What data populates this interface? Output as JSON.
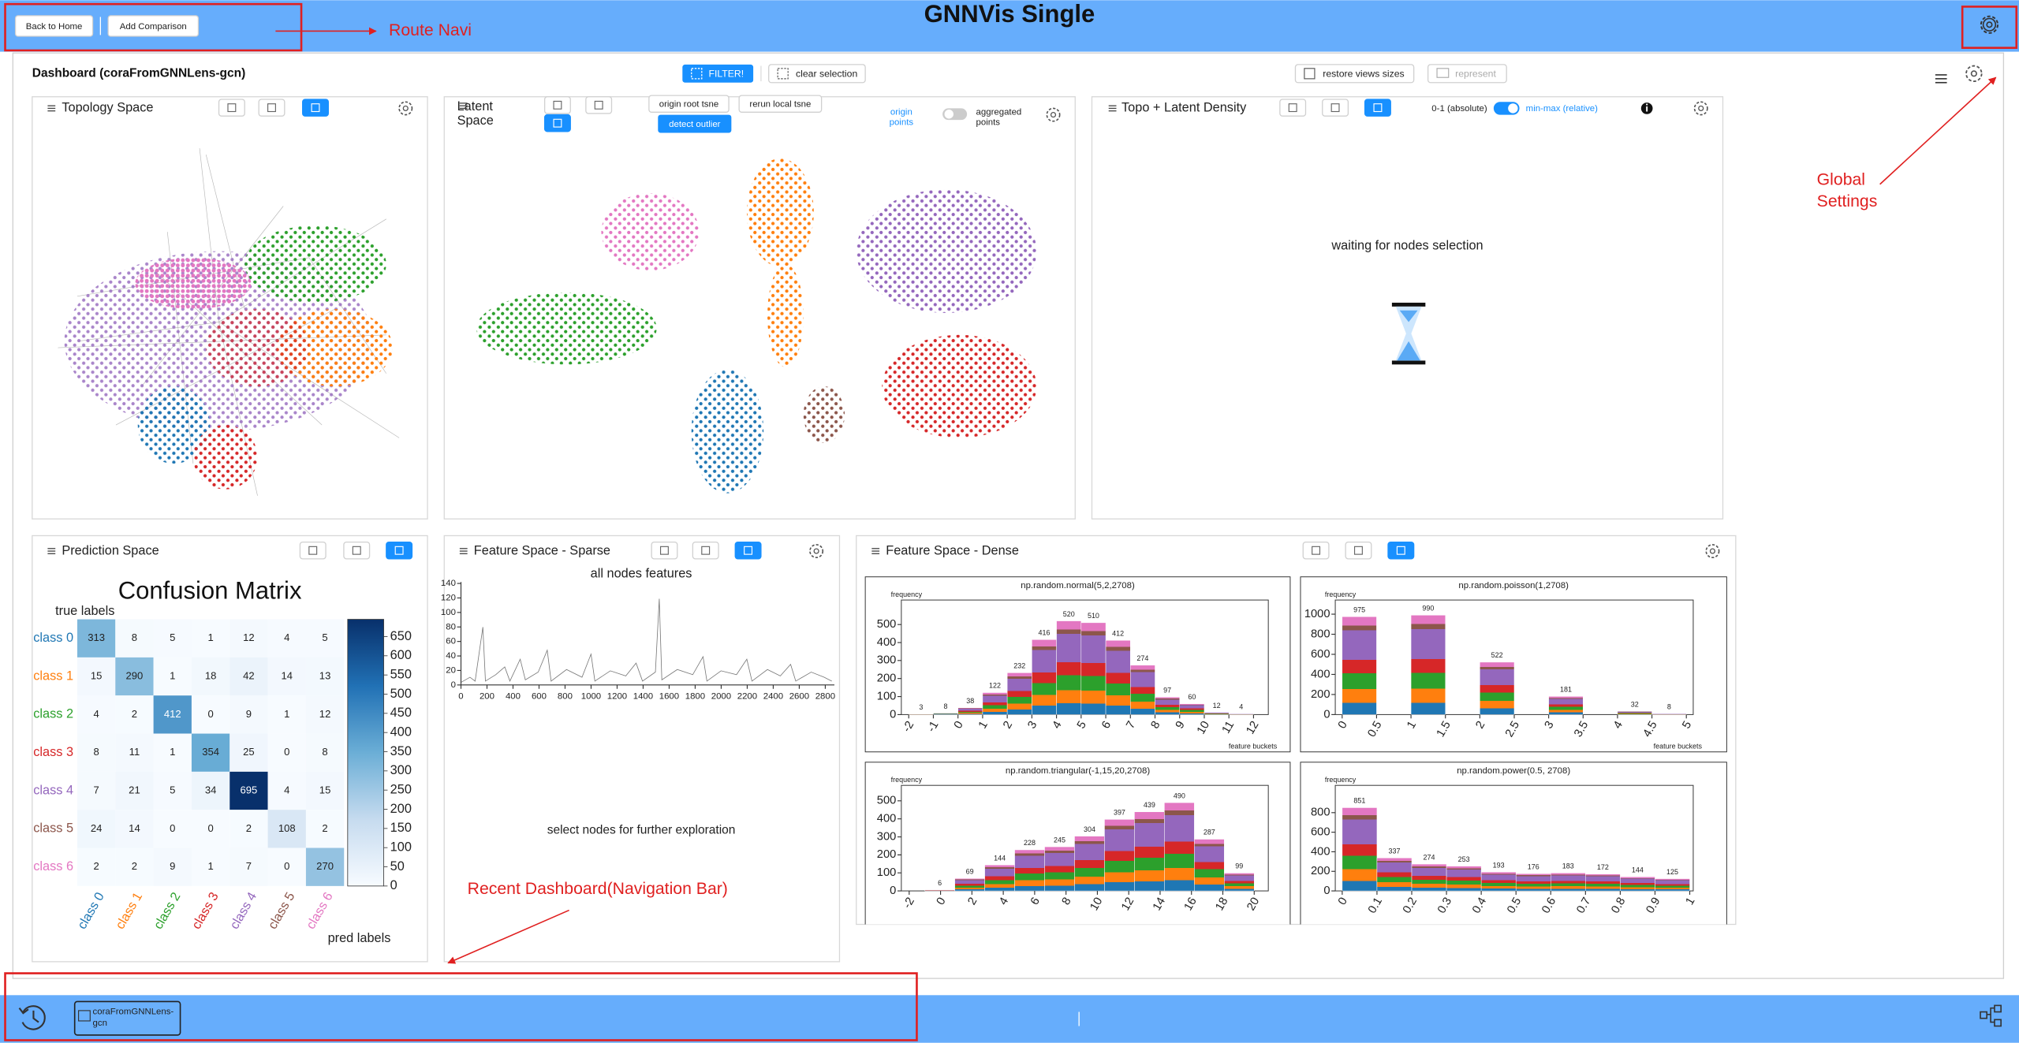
{
  "header": {
    "title": "GNNVis Single",
    "buttons": [
      "Back to Home",
      "Add Comparison"
    ]
  },
  "annotations": {
    "route_navi": "Route Navi",
    "global_settings": [
      "Global",
      "Settings"
    ],
    "nav_bar": "Recent Dashboard(Navigation Bar)"
  },
  "dashboard": {
    "title": "Dashboard (coraFromGNNLens-gcn)",
    "buttons": [
      "FILTER!",
      "clear selection",
      "restore views sizes",
      "represent"
    ]
  },
  "panels": {
    "topology": {
      "title": "Topology Space"
    },
    "latent": {
      "title": [
        "Latent",
        "Space"
      ],
      "buttons": [
        "origin root tsne",
        "rerun local tsne",
        "detect outlier"
      ],
      "toggle_left": [
        "origin",
        "points"
      ],
      "toggle_right": [
        "aggregated",
        "points"
      ]
    },
    "density": {
      "title": "Topo + Latent Density",
      "toggle_left": "0-1 (absolute)",
      "toggle_right": "min-max (relative)",
      "message": "waiting for nodes selection"
    },
    "prediction": {
      "title": "Prediction Space"
    },
    "sparse": {
      "title": "Feature Space - Sparse",
      "message": "select nodes for further exploration"
    },
    "dense": {
      "title": "Feature Space - Dense"
    }
  },
  "navbar": {
    "tiles": [
      [
        "coraFromGNNLens-",
        "gcn"
      ]
    ]
  },
  "chart_data": [
    {
      "type": "heatmap",
      "title": "Confusion Matrix",
      "y_label": "true labels",
      "x_label": "pred labels",
      "categories": [
        "class 0",
        "class 1",
        "class 2",
        "class 3",
        "class 4",
        "class 5",
        "class 6"
      ],
      "colors": [
        "#1f77b4",
        "#ff7f0e",
        "#2ca02c",
        "#d62728",
        "#9467bd",
        "#8c564b",
        "#e377c2"
      ],
      "values": [
        [
          313,
          8,
          5,
          1,
          12,
          4,
          5
        ],
        [
          15,
          290,
          1,
          18,
          42,
          14,
          13
        ],
        [
          4,
          2,
          412,
          0,
          9,
          1,
          12
        ],
        [
          8,
          11,
          1,
          354,
          25,
          0,
          8
        ],
        [
          7,
          21,
          5,
          34,
          695,
          4,
          15
        ],
        [
          24,
          14,
          0,
          0,
          2,
          108,
          2
        ],
        [
          2,
          2,
          9,
          1,
          7,
          0,
          270
        ]
      ],
      "colormap": "Blues",
      "clim": [
        0,
        695
      ],
      "cticks": [
        0,
        50,
        100,
        150,
        200,
        250,
        300,
        350,
        400,
        450,
        500,
        550,
        600,
        650
      ]
    },
    {
      "type": "line",
      "title": "all nodes features",
      "xlim": [
        0,
        2870
      ],
      "ylim": [
        0,
        142
      ],
      "xticks": [
        0,
        200,
        400,
        600,
        800,
        1000,
        1200,
        1400,
        1600,
        1800,
        2000,
        2200,
        2400,
        2600,
        2800
      ],
      "yticks": [
        0,
        20,
        40,
        60,
        80,
        100,
        120,
        140
      ]
    },
    {
      "type": "histogram",
      "title": "np.random.normal(5,2,2708)",
      "y_label": "frequency",
      "x_label": "feature buckets",
      "bins": [
        -2,
        -1,
        0,
        1,
        2,
        3,
        4,
        5,
        6,
        7,
        8,
        9,
        10,
        11,
        12
      ],
      "values": [
        3,
        8,
        38,
        122,
        232,
        416,
        520,
        510,
        412,
        274,
        97,
        60,
        12,
        4
      ],
      "xlim": [
        -2.3,
        12.6
      ],
      "ylim": [
        0,
        636
      ],
      "xticks": [
        -2,
        -1,
        0,
        1,
        2,
        3,
        4,
        5,
        6,
        7,
        8,
        9,
        10,
        11,
        12
      ],
      "yticks": [
        0,
        100,
        200,
        300,
        400,
        500
      ]
    },
    {
      "type": "histogram",
      "title": "np.random.poisson(1,2708)",
      "y_label": "frequency",
      "x_label": "feature buckets",
      "bins": [
        0,
        0.5,
        1,
        1.5,
        2,
        2.5,
        3,
        3.5,
        4,
        4.5,
        5
      ],
      "values": [
        975,
        0,
        990,
        0,
        522,
        0,
        181,
        0,
        32,
        8
      ],
      "value_labels": [
        "975",
        null,
        "990",
        null,
        "522",
        null,
        "181",
        null,
        "32",
        "8"
      ],
      "xlim": [
        -0.1,
        5.1
      ],
      "ylim": [
        0,
        1141
      ],
      "xticks": [
        0,
        0.5,
        1,
        1.5,
        2,
        2.5,
        3,
        3.5,
        4,
        4.5,
        5
      ],
      "yticks": [
        0,
        200,
        400,
        600,
        800,
        1000
      ]
    },
    {
      "type": "histogram",
      "title": "np.random.triangular(-1,15,20,2708)",
      "y_label": "frequency",
      "bins": [
        -1,
        0.909,
        2.818,
        4.727,
        6.636,
        8.545,
        10.455,
        12.364,
        14.273,
        16.182,
        18.091,
        20
      ],
      "values": [
        6,
        69,
        144,
        228,
        245,
        304,
        397,
        439,
        490,
        287,
        99
      ],
      "xlim": [
        -2.5,
        20.9
      ],
      "ylim": [
        0,
        586
      ],
      "xticks": [
        -2,
        0,
        2,
        4,
        6,
        8,
        10,
        12,
        14,
        16,
        18,
        20
      ],
      "yticks": [
        0,
        100,
        200,
        300,
        400,
        500
      ]
    },
    {
      "type": "histogram",
      "title": "np.random.power(0.5, 2708)",
      "y_label": "frequency",
      "bins": [
        0,
        0.1,
        0.2,
        0.3,
        0.4,
        0.5,
        0.6,
        0.7,
        0.8,
        0.9,
        1
      ],
      "values": [
        851,
        337,
        274,
        253,
        193,
        176,
        183,
        172,
        144,
        125
      ],
      "xlim": [
        -0.02,
        1.01
      ],
      "ylim": [
        0,
        1079
      ],
      "xticks": [
        0,
        0.1,
        0.2,
        0.3,
        0.4,
        0.5,
        0.6,
        0.7,
        0.8,
        0.9,
        1
      ],
      "yticks": [
        0,
        200,
        400,
        600,
        800
      ]
    }
  ]
}
